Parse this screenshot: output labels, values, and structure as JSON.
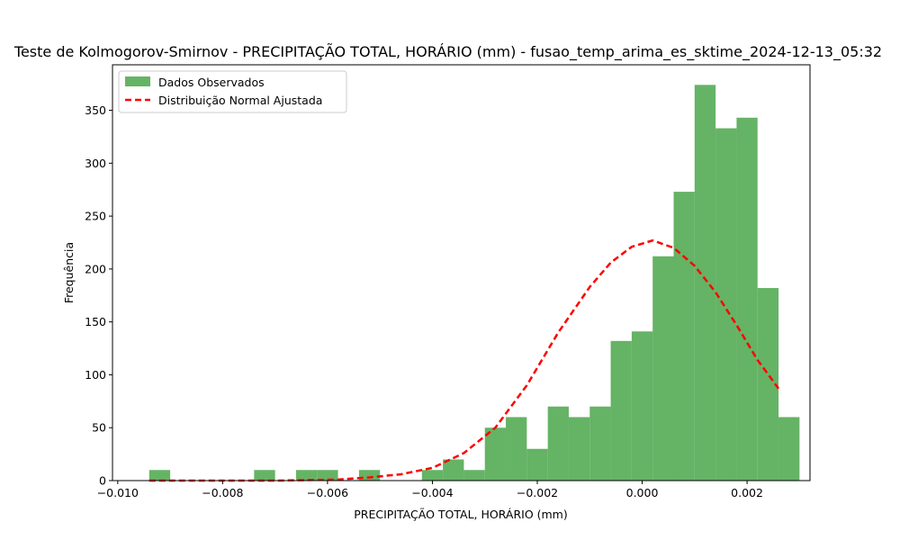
{
  "chart_data": {
    "type": "histogram",
    "title": "Teste de Kolmogorov-Smirnov - PRECIPITAÇÃO TOTAL, HORÁRIO (mm) - fusao_temp_arima_es_sktime_2024-12-13_05:32",
    "xlabel": "PRECIPITAÇÃO TOTAL, HORÁRIO (mm)",
    "ylabel": "Frequência",
    "xlim": [
      -0.0101,
      0.0032
    ],
    "ylim": [
      0,
      393
    ],
    "x_ticks": [
      -0.01,
      -0.008,
      -0.006,
      -0.004,
      -0.002,
      0.0,
      0.002
    ],
    "x_tick_labels": [
      "−0.010",
      "−0.008",
      "−0.006",
      "−0.004",
      "−0.002",
      "0.000",
      "0.002"
    ],
    "y_ticks": [
      0,
      50,
      100,
      150,
      200,
      250,
      300,
      350
    ],
    "y_tick_labels": [
      "0",
      "50",
      "100",
      "150",
      "200",
      "250",
      "300",
      "350"
    ],
    "grid": false,
    "legend_position": "upper-left",
    "series": [
      {
        "name": "Dados Observados",
        "kind": "histogram",
        "color": "#4ca64c",
        "bin_start": -0.0094,
        "bin_width": 0.0004,
        "counts": [
          10,
          0,
          0,
          0,
          0,
          10,
          0,
          10,
          10,
          0,
          10,
          0,
          0,
          10,
          20,
          10,
          50,
          60,
          30,
          70,
          60,
          70,
          132,
          141,
          212,
          273,
          374,
          333,
          343,
          182,
          60
        ]
      },
      {
        "name": "Distribuição Normal Ajustada",
        "kind": "line",
        "color": "#ff0000",
        "style": "dashed",
        "x": [
          -0.0094,
          -0.0088,
          -0.0082,
          -0.0076,
          -0.007,
          -0.0064,
          -0.0058,
          -0.0052,
          -0.0046,
          -0.004,
          -0.0034,
          -0.0028,
          -0.0022,
          -0.0016,
          -0.001,
          -0.0006,
          -0.0002,
          0.0002,
          0.0006,
          0.001,
          0.0014,
          0.0018,
          0.0022,
          0.0026
        ],
        "y": [
          0,
          0,
          0,
          0,
          0,
          0.5,
          1,
          3,
          6,
          12,
          26,
          50,
          90,
          140,
          183,
          206,
          221,
          227,
          220,
          203,
          178,
          147,
          114,
          87
        ]
      }
    ]
  }
}
